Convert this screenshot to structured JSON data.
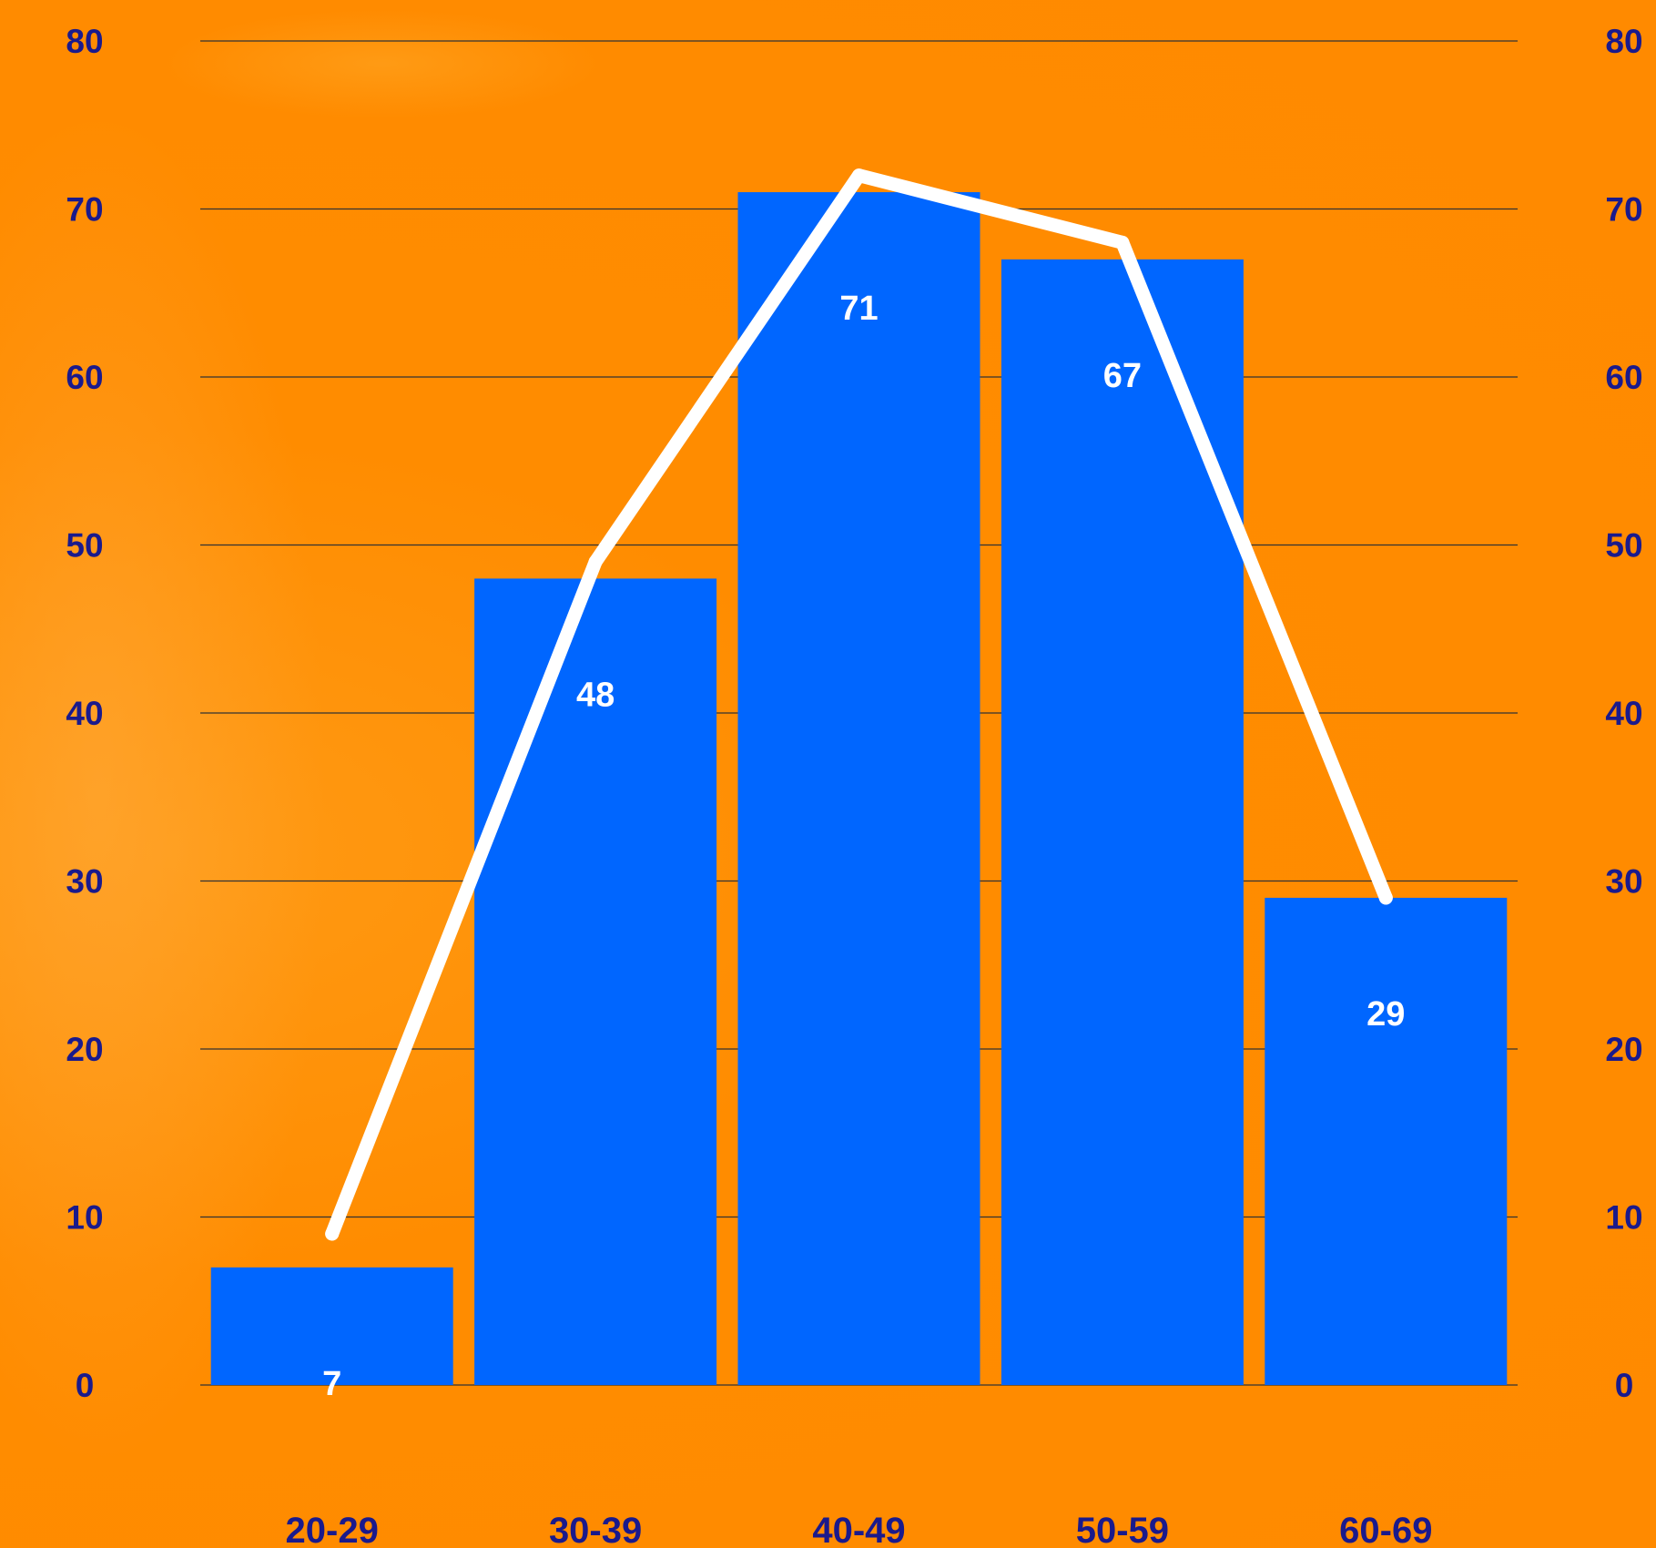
{
  "chart_data": {
    "type": "bar",
    "categories": [
      "20-29",
      "30-39",
      "40-49",
      "50-59",
      "60-69"
    ],
    "values": [
      7,
      48,
      71,
      67,
      29
    ],
    "line_values": [
      9,
      49,
      72,
      68,
      29
    ],
    "ylim": [
      0,
      80
    ],
    "y_ticks": [
      "0",
      "10",
      "20",
      "30",
      "40",
      "50",
      "60",
      "70",
      "80"
    ],
    "y_tick_values": [
      0,
      10,
      20,
      30,
      40,
      50,
      60,
      70,
      80
    ],
    "grid": true,
    "secondary_axis": true,
    "colors": {
      "background": "#ff8a00",
      "bar": "#0066ff",
      "line": "#ffffff",
      "axis_text": "#1a1a8c",
      "grid": "#333333",
      "data_label": "#ffffff"
    }
  }
}
